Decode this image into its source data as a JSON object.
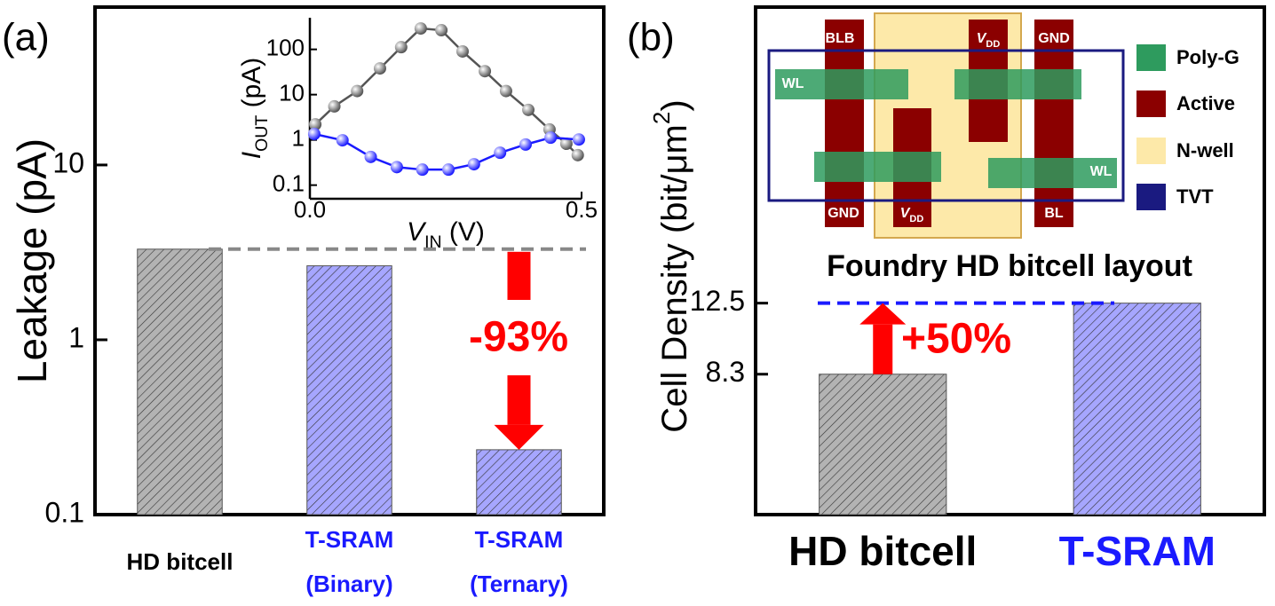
{
  "chart_data": [
    {
      "type": "bar",
      "panel_label": "(a)",
      "ylabel": [
        "Leakage (pA)"
      ],
      "categories": [
        [
          "HD bitcell"
        ],
        [
          "T-SRAM",
          "(Binary)"
        ],
        [
          "T-SRAM",
          "(Ternary)"
        ]
      ],
      "category_colors": [
        "#000000",
        "#1a1aff",
        "#1a1aff"
      ],
      "values": [
        3.3,
        2.65,
        0.235
      ],
      "colors": [
        "#b3b3b3",
        "#a6a6ff",
        "#a6a6ff"
      ],
      "log_y": true,
      "ylim": [
        0.1,
        80
      ],
      "yticks": [
        0.1,
        1,
        10
      ],
      "reference_color": "#888888",
      "annotation": "-93%",
      "annotation_color": "#ff0000"
    },
    {
      "type": "line",
      "log_y": true,
      "xlabel": [
        "V",
        "IN",
        " (V)"
      ],
      "ylabel": [
        "I",
        "OUT",
        " (pA)"
      ],
      "xlim": [
        0,
        0.5
      ],
      "xticks": [
        {
          "value": 0,
          "label": "0.0"
        },
        0.5
      ],
      "ylim": [
        0.05,
        500
      ],
      "yticks": [
        0.1,
        1,
        10,
        100
      ],
      "series": [
        {
          "color": "#555555",
          "x": [
            0.01,
            0.045,
            0.087,
            0.129,
            0.168,
            0.204,
            0.242,
            0.281,
            0.322,
            0.361,
            0.402,
            0.441,
            0.472,
            0.493
          ],
          "values": [
            2.2,
            5.5,
            12,
            38,
            112,
            290,
            265,
            90,
            33,
            12,
            4.6,
            1.7,
            0.82,
            0.46
          ]
        },
        {
          "color": "#1a1aff",
          "x": [
            0.008,
            0.06,
            0.112,
            0.16,
            0.207,
            0.255,
            0.302,
            0.35,
            0.397,
            0.443,
            0.495
          ],
          "values": [
            1.35,
            0.98,
            0.42,
            0.25,
            0.22,
            0.22,
            0.29,
            0.52,
            0.79,
            1.12,
            1.02
          ]
        }
      ]
    },
    {
      "type": "bar",
      "panel_label": "(b)",
      "ylabel": [
        "Cell Density (bit/μm",
        "2",
        ")"
      ],
      "categories": [
        [
          "HD bitcell"
        ],
        [
          "T-SRAM"
        ]
      ],
      "category_colors": [
        "#000000",
        "#1a1aff"
      ],
      "values": [
        8.3,
        12.5
      ],
      "colors": [
        "#b3b3b3",
        "#a6a6ff"
      ],
      "log_y": false,
      "ylim": [
        0,
        30
      ],
      "yticks": [
        8.3,
        12.5
      ],
      "reference_color": "#1a1aff",
      "annotation": "+50%",
      "annotation_color": "#ff0000",
      "layout_inset": {
        "title": "Foundry HD bitcell layout",
        "labels": [
          [
            "BLB"
          ],
          [
            "V",
            "DD"
          ],
          [
            "GND"
          ],
          [
            "WL"
          ],
          [
            "WL"
          ],
          [
            "GND"
          ],
          [
            "V",
            "DD"
          ],
          [
            "BL"
          ]
        ],
        "legend": [
          "Poly-G",
          "Active",
          "N-well",
          "TVT"
        ]
      }
    }
  ]
}
